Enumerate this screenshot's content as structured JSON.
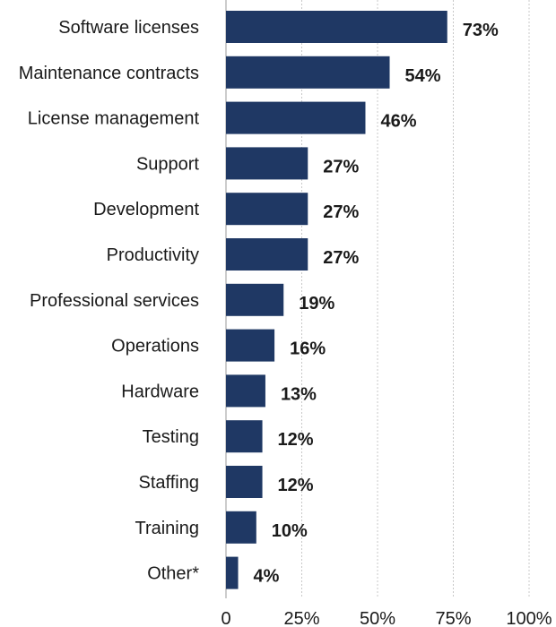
{
  "colors": {
    "bar": "#1f3864"
  },
  "chart_data": {
    "type": "bar",
    "orientation": "horizontal",
    "categories": [
      "Software licenses",
      "Maintenance contracts",
      "License management",
      "Support",
      "Development",
      "Productivity",
      "Professional services",
      "Operations",
      "Hardware",
      "Testing",
      "Staffing",
      "Training",
      "Other*"
    ],
    "values": [
      73,
      54,
      46,
      27,
      27,
      27,
      19,
      16,
      13,
      12,
      12,
      10,
      4
    ],
    "value_labels": [
      "73%",
      "54%",
      "46%",
      "27%",
      "27%",
      "27%",
      "19%",
      "16%",
      "13%",
      "12%",
      "12%",
      "10%",
      "4%"
    ],
    "xlim": [
      0,
      100
    ],
    "x_ticks": [
      0,
      25,
      50,
      75,
      100
    ],
    "x_tick_labels": [
      "0",
      "25%",
      "50%",
      "75%",
      "100%"
    ],
    "grid": true,
    "title": "",
    "xlabel": "",
    "ylabel": ""
  }
}
